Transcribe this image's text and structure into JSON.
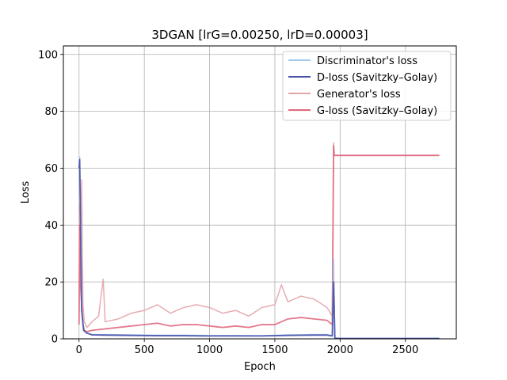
{
  "chart_data": {
    "type": "line",
    "title": "3DGAN [lrG=0.00250, lrD=0.00003]",
    "xlabel": "Epoch",
    "ylabel": "Loss",
    "xlim": [
      -120,
      2890
    ],
    "ylim": [
      0,
      103
    ],
    "grid": true,
    "legend_placement": "top-right",
    "xticks": [
      0,
      500,
      1000,
      1500,
      2000,
      2500
    ],
    "yticks": [
      0,
      20,
      40,
      60,
      80,
      100
    ],
    "series": [
      {
        "name": "Discriminator's loss",
        "color": "#a6c8ee",
        "x": [
          0,
          5,
          12,
          20,
          35,
          60,
          100,
          200,
          400,
          600,
          800,
          1000,
          1200,
          1400,
          1600,
          1800,
          1900,
          1940,
          1950,
          1960,
          2000,
          2200,
          2400,
          2600,
          2760
        ],
        "values": [
          62,
          64,
          40,
          10,
          3,
          2,
          1.5,
          1.5,
          1.4,
          1.3,
          1.3,
          1.2,
          1.2,
          1.1,
          1.4,
          1.5,
          1.5,
          1.2,
          28,
          0.3,
          0.2,
          0.2,
          0.2,
          0.2,
          0.2
        ]
      },
      {
        "name": "D-loss (Savitzky–Golay)",
        "color": "#4850a8",
        "x": [
          0,
          5,
          12,
          20,
          35,
          60,
          100,
          200,
          400,
          600,
          800,
          1000,
          1200,
          1400,
          1600,
          1800,
          1900,
          1940,
          1950,
          1960,
          2000,
          2200,
          2400,
          2600,
          2760
        ],
        "values": [
          60,
          63,
          38,
          10,
          3,
          2,
          1.4,
          1.3,
          1.2,
          1.1,
          1.1,
          1.0,
          1.0,
          1.0,
          1.2,
          1.3,
          1.3,
          1.0,
          20,
          0.2,
          0.1,
          0.1,
          0.1,
          0.1,
          0.1
        ]
      },
      {
        "name": "Generator's loss",
        "color": "#e3a3aa",
        "x": [
          0,
          5,
          10,
          20,
          30,
          40,
          60,
          100,
          150,
          185,
          200,
          300,
          400,
          500,
          600,
          700,
          800,
          900,
          1000,
          1100,
          1200,
          1300,
          1400,
          1500,
          1550,
          1600,
          1700,
          1800,
          1900,
          1940,
          1950,
          1955,
          2000,
          2200,
          2400,
          2600,
          2760
        ],
        "values": [
          10,
          47,
          30,
          56,
          12,
          6,
          4,
          6,
          8,
          21,
          6,
          7,
          9,
          10,
          12,
          9,
          11,
          12,
          11,
          9,
          10,
          8,
          11,
          12,
          19,
          13,
          15,
          14,
          11,
          8,
          69,
          64.5,
          64.5,
          64.5,
          64.5,
          64.5,
          64.5
        ]
      },
      {
        "name": "G-loss (Savitzky–Golay)",
        "color": "#e06a80",
        "x": [
          0,
          5,
          10,
          20,
          30,
          40,
          60,
          100,
          200,
          300,
          400,
          500,
          600,
          700,
          800,
          900,
          1000,
          1100,
          1200,
          1300,
          1400,
          1500,
          1550,
          1600,
          1700,
          1800,
          1900,
          1940,
          1950,
          1955,
          2000,
          2200,
          2400,
          2600,
          2760
        ],
        "values": [
          5,
          40,
          20,
          12,
          5,
          3,
          2.5,
          3,
          3.5,
          4,
          4.5,
          5,
          5.5,
          4.5,
          5,
          5,
          4.5,
          4,
          4.5,
          4,
          5,
          5,
          6,
          7,
          7.5,
          7,
          6.5,
          5,
          68,
          64.5,
          64.5,
          64.5,
          64.5,
          64.5,
          64.5
        ]
      }
    ]
  }
}
